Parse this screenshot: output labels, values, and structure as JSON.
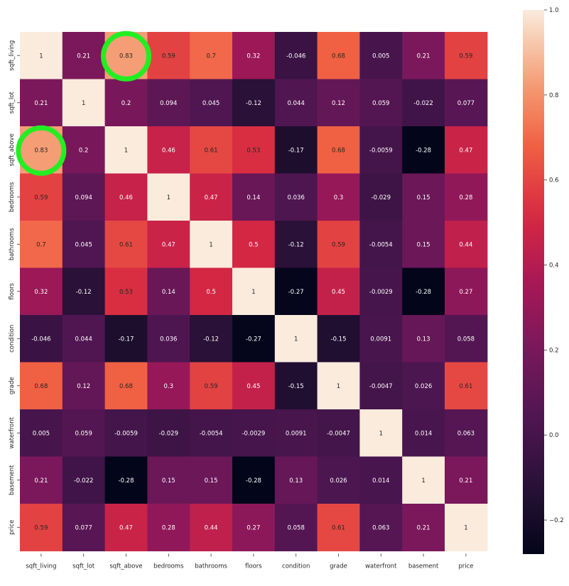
{
  "chart_data": {
    "type": "heatmap",
    "title": "",
    "xlabel": "",
    "ylabel": "",
    "categories": [
      "sqft_living",
      "sqft_lot",
      "sqft_above",
      "bedrooms",
      "bathrooms",
      "floors",
      "condition",
      "grade",
      "waterfront",
      "basement",
      "price"
    ],
    "matrix_labels": [
      [
        "1",
        "0.21",
        "0.83",
        "0.59",
        "0.7",
        "0.32",
        "-0.046",
        "0.68",
        "0.005",
        "0.21",
        "0.59"
      ],
      [
        "0.21",
        "1",
        "0.2",
        "0.094",
        "0.045",
        "-0.12",
        "0.044",
        "0.12",
        "0.059",
        "-0.022",
        "0.077"
      ],
      [
        "0.83",
        "0.2",
        "1",
        "0.46",
        "0.61",
        "0.53",
        "-0.17",
        "0.68",
        "-0.0059",
        "-0.28",
        "0.47"
      ],
      [
        "0.59",
        "0.094",
        "0.46",
        "1",
        "0.47",
        "0.14",
        "0.036",
        "0.3",
        "-0.029",
        "0.15",
        "0.28"
      ],
      [
        "0.7",
        "0.045",
        "0.61",
        "0.47",
        "1",
        "0.5",
        "-0.12",
        "0.59",
        "-0.0054",
        "0.15",
        "0.44"
      ],
      [
        "0.32",
        "-0.12",
        "0.53",
        "0.14",
        "0.5",
        "1",
        "-0.27",
        "0.45",
        "-0.0029",
        "-0.28",
        "0.27"
      ],
      [
        "-0.046",
        "0.044",
        "-0.17",
        "0.036",
        "-0.12",
        "-0.27",
        "1",
        "-0.15",
        "0.0091",
        "0.13",
        "0.058"
      ],
      [
        "0.68",
        "0.12",
        "0.68",
        "0.3",
        "0.59",
        "0.45",
        "-0.15",
        "1",
        "-0.0047",
        "0.026",
        "0.61"
      ],
      [
        "0.005",
        "0.059",
        "-0.0059",
        "-0.029",
        "-0.0054",
        "-0.0029",
        "0.0091",
        "-0.0047",
        "1",
        "0.014",
        "0.063"
      ],
      [
        "0.21",
        "-0.022",
        "-0.28",
        "0.15",
        "0.15",
        "-0.28",
        "0.13",
        "0.026",
        "0.014",
        "1",
        "0.21"
      ],
      [
        "0.59",
        "0.077",
        "0.47",
        "0.28",
        "0.44",
        "0.27",
        "0.058",
        "0.61",
        "0.063",
        "0.21",
        "1"
      ]
    ],
    "colorbar": {
      "vmin": -0.28,
      "vmax": 1.0,
      "ticks": [
        1.0,
        0.8,
        0.6,
        0.4,
        0.2,
        0.0,
        -0.2
      ],
      "tick_labels": [
        "1.0",
        "0.8",
        "0.6",
        "0.4",
        "0.2",
        "0.0",
        "−0.2"
      ],
      "colormap": "rocket"
    },
    "annotations": [
      {
        "type": "circle",
        "row": 0,
        "col": 2,
        "color": "#22ee22"
      },
      {
        "type": "circle",
        "row": 2,
        "col": 0,
        "color": "#22ee22"
      }
    ]
  }
}
